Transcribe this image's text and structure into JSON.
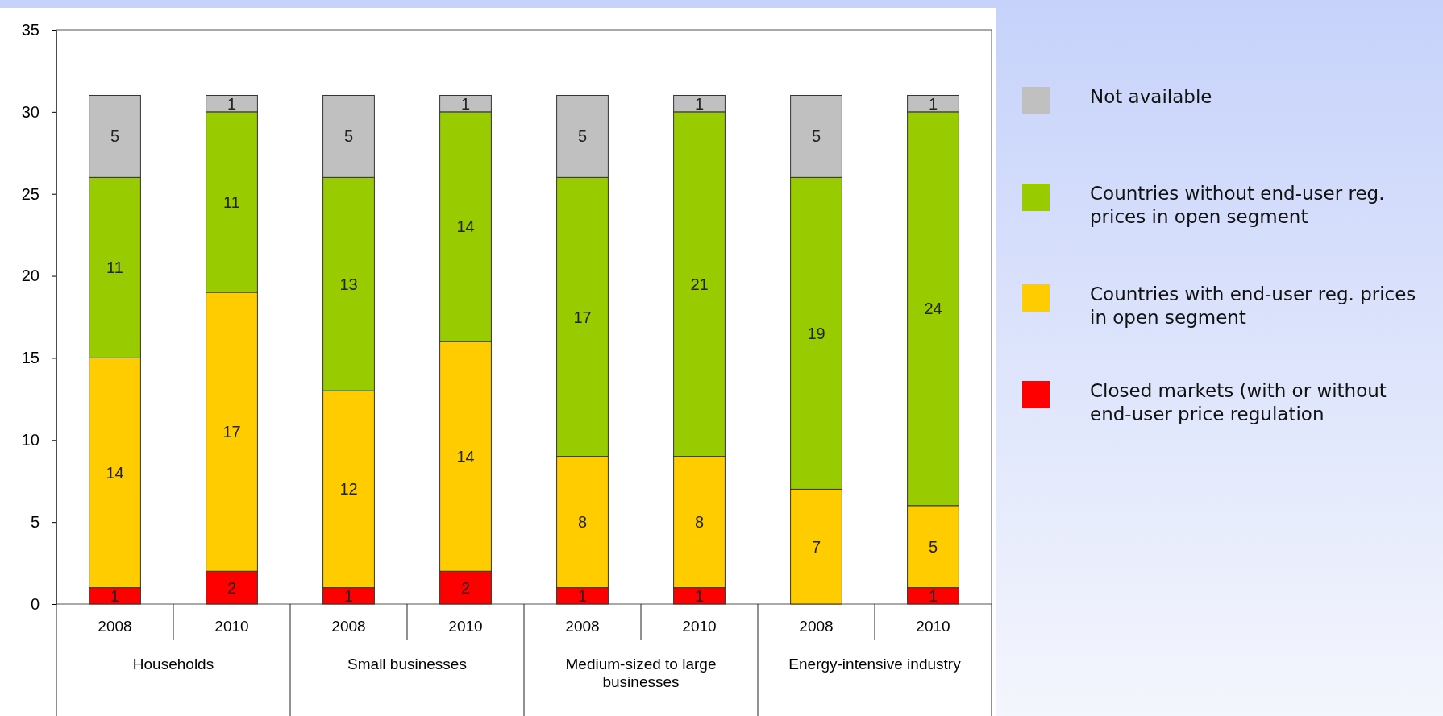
{
  "chart_data": {
    "type": "bar",
    "stacked": true,
    "categories": [
      "2008",
      "2010",
      "2008",
      "2010",
      "2008",
      "2010",
      "2008",
      "2010"
    ],
    "annotations": [
      "Households",
      "Small businesses",
      "Medium-sized to large businesses",
      "Energy-intensive industry"
    ],
    "series": [
      {
        "name": "Closed markets (with or without end-user price regulation",
        "color": "#ff0000",
        "values": [
          1,
          2,
          1,
          2,
          1,
          1,
          null,
          1
        ]
      },
      {
        "name": "Countries with end-user reg. prices in open segment",
        "color": "#ffcc00",
        "values": [
          14,
          17,
          12,
          14,
          8,
          8,
          7,
          5
        ]
      },
      {
        "name": "Countries without end-user reg. prices in open segment",
        "color": "#99cc00",
        "values": [
          11,
          11,
          13,
          14,
          17,
          21,
          19,
          24
        ]
      },
      {
        "name": "Not available",
        "color": "#c0c0c0",
        "values": [
          5,
          1,
          5,
          1,
          5,
          1,
          5,
          1
        ]
      }
    ],
    "ylim": [
      0,
      35
    ],
    "yticks": [
      0,
      5,
      10,
      15,
      20,
      25,
      30,
      35
    ],
    "data_labels": true,
    "legend": "right",
    "grid": false
  }
}
